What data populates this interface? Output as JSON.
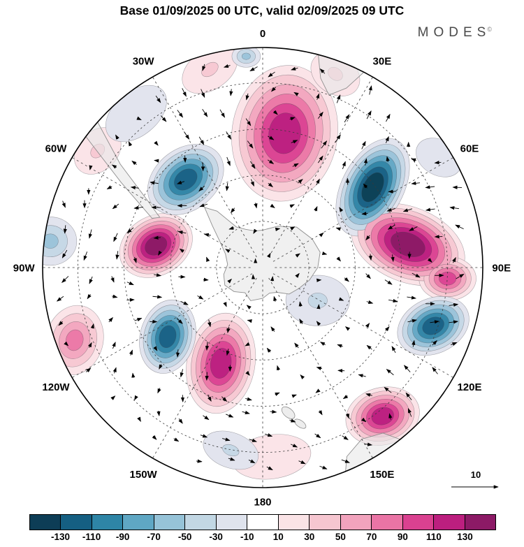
{
  "header": {
    "title": "Base 01/09/2025 00 UTC, valid 02/09/2025 09 UTC",
    "brand": "MODES",
    "brand_mark": "©"
  },
  "chart_data": {
    "type": "filled_contour_polar_map",
    "projection": "south_polar_stereographic",
    "title": "Base 01/09/2025 00 UTC, valid 02/09/2025 09 UTC",
    "meridian_labels": [
      {
        "label": "0",
        "az": 0
      },
      {
        "label": "30E",
        "az": 30
      },
      {
        "label": "60E",
        "az": 60
      },
      {
        "label": "90E",
        "az": 90
      },
      {
        "label": "120E",
        "az": 120
      },
      {
        "label": "150E",
        "az": 150
      },
      {
        "label": "180",
        "az": 180
      },
      {
        "label": "150W",
        "az": 210
      },
      {
        "label": "120W",
        "az": 240
      },
      {
        "label": "90W",
        "az": 270
      },
      {
        "label": "60W",
        "az": 300
      },
      {
        "label": "30W",
        "az": 330
      }
    ],
    "latitude_rings_r": [
      0.21,
      0.42,
      0.63,
      0.84
    ],
    "colorbar": {
      "tick_labels": [
        "-130",
        "-110",
        "-90",
        "-70",
        "-50",
        "-30",
        "-10",
        "10",
        "30",
        "50",
        "70",
        "90",
        "110",
        "130"
      ],
      "colors": [
        "#0d3d56",
        "#155f82",
        "#2e85a6",
        "#5fa7c4",
        "#96c3d8",
        "#c2d7e4",
        "#dfe3ed",
        "#ffffff",
        "#fae3e6",
        "#f6c6d0",
        "#f2a3bd",
        "#ea74a5",
        "#da4190",
        "#bc1f7f",
        "#8c1a66"
      ]
    },
    "negative_ramp": [
      "#e2e4ee",
      "#c6d8e6",
      "#9cc4da",
      "#66a9c6",
      "#3487a8",
      "#1b6387",
      "#0d4258"
    ],
    "positive_ramp": [
      "#fbe4e8",
      "#f7c9d3",
      "#f3a8c0",
      "#ec7aa8",
      "#dc4694",
      "#bd2181",
      "#8e1a67"
    ],
    "anomaly_centers": [
      {
        "sign": 1,
        "u": 0.1,
        "v": -0.61,
        "rx": 0.24,
        "ry": 0.31,
        "rot": 8,
        "levels": 6
      },
      {
        "sign": 1,
        "u": -0.485,
        "v": -0.1,
        "rx": 0.175,
        "ry": 0.135,
        "rot": -30,
        "levels": 7
      },
      {
        "sign": 1,
        "u": 0.66,
        "v": -0.105,
        "rx": 0.27,
        "ry": 0.17,
        "rot": 22,
        "levels": 7
      },
      {
        "sign": 1,
        "u": 0.84,
        "v": 0.05,
        "rx": 0.13,
        "ry": 0.1,
        "rot": 0,
        "levels": 5
      },
      {
        "sign": 1,
        "u": -0.19,
        "v": 0.435,
        "rx": 0.155,
        "ry": 0.23,
        "rot": 10,
        "levels": 6
      },
      {
        "sign": 1,
        "u": 0.545,
        "v": 0.675,
        "rx": 0.17,
        "ry": 0.13,
        "rot": -15,
        "levels": 6
      },
      {
        "sign": 1,
        "u": -0.855,
        "v": 0.33,
        "rx": 0.13,
        "ry": 0.16,
        "rot": 15,
        "levels": 4
      },
      {
        "sign": 1,
        "u": -0.24,
        "v": -0.9,
        "rx": 0.14,
        "ry": 0.09,
        "rot": -35,
        "levels": 2
      },
      {
        "sign": 1,
        "u": 0.33,
        "v": -0.88,
        "rx": 0.12,
        "ry": 0.09,
        "rot": 35,
        "levels": 2
      },
      {
        "sign": 1,
        "u": 0.04,
        "v": 0.86,
        "rx": 0.18,
        "ry": 0.1,
        "rot": -8,
        "levels": 1
      },
      {
        "sign": 1,
        "u": -0.75,
        "v": -0.53,
        "rx": 0.12,
        "ry": 0.09,
        "rot": -45,
        "levels": 2
      },
      {
        "sign": -1,
        "u": -0.35,
        "v": -0.4,
        "rx": 0.19,
        "ry": 0.14,
        "rot": -38,
        "levels": 6
      },
      {
        "sign": -1,
        "u": 0.5,
        "v": -0.365,
        "rx": 0.14,
        "ry": 0.24,
        "rot": 28,
        "levels": 7
      },
      {
        "sign": -1,
        "u": 0.775,
        "v": 0.265,
        "rx": 0.17,
        "ry": 0.125,
        "rot": -25,
        "levels": 6
      },
      {
        "sign": -1,
        "u": -0.432,
        "v": 0.314,
        "rx": 0.125,
        "ry": 0.17,
        "rot": 15,
        "levels": 6
      },
      {
        "sign": -1,
        "u": -0.965,
        "v": -0.12,
        "rx": 0.12,
        "ry": 0.11,
        "rot": 0,
        "levels": 3
      },
      {
        "sign": -1,
        "u": -0.145,
        "v": 0.83,
        "rx": 0.13,
        "ry": 0.08,
        "rot": 20,
        "levels": 2
      },
      {
        "sign": -1,
        "u": -0.075,
        "v": -0.96,
        "rx": 0.065,
        "ry": 0.05,
        "rot": 0,
        "levels": 3
      },
      {
        "sign": -1,
        "u": -0.575,
        "v": -0.7,
        "rx": 0.16,
        "ry": 0.1,
        "rot": -40,
        "levels": 1
      },
      {
        "sign": -1,
        "u": 0.25,
        "v": 0.15,
        "rx": 0.145,
        "ry": 0.115,
        "rot": 0,
        "levels": 2
      },
      {
        "sign": -1,
        "u": 0.8,
        "v": -0.5,
        "rx": 0.11,
        "ry": 0.08,
        "rot": 30,
        "levels": 1
      }
    ],
    "land_shapes": [
      {
        "name": "antarctica",
        "type": "polygon",
        "fill": "#f0f0f0",
        "pts": [
          [
            0,
            0.17
          ],
          [
            20,
            0.2
          ],
          [
            40,
            0.24
          ],
          [
            60,
            0.26
          ],
          [
            75,
            0.27
          ],
          [
            90,
            0.25
          ],
          [
            105,
            0.22
          ],
          [
            120,
            0.19
          ],
          [
            135,
            0.17
          ],
          [
            150,
            0.13
          ],
          [
            165,
            0.12
          ],
          [
            180,
            0.14
          ],
          [
            200,
            0.16
          ],
          [
            215,
            0.14
          ],
          [
            230,
            0.17
          ],
          [
            245,
            0.19
          ],
          [
            260,
            0.18
          ],
          [
            275,
            0.16
          ],
          [
            290,
            0.18
          ],
          [
            300,
            0.22
          ],
          [
            310,
            0.3
          ],
          [
            316,
            0.38
          ],
          [
            321,
            0.33
          ],
          [
            327,
            0.22
          ],
          [
            336,
            0.19
          ],
          [
            348,
            0.17
          ]
        ]
      },
      {
        "name": "south-america",
        "type": "polygon",
        "fill": "rgba(232,232,232,0.6)",
        "pts": [
          [
            312,
            1.03
          ],
          [
            306,
            0.8
          ],
          [
            300,
            0.6
          ],
          [
            296,
            0.52
          ],
          [
            294,
            0.55
          ],
          [
            301,
            0.75
          ],
          [
            307,
            1.03
          ]
        ]
      },
      {
        "name": "africa",
        "type": "polygon",
        "fill": "rgba(232,232,232,0.6)",
        "pts": [
          [
            14,
            1.03
          ],
          [
            17,
            0.9
          ],
          [
            21,
            0.84
          ],
          [
            25,
            0.9
          ],
          [
            28,
            1.03
          ]
        ]
      },
      {
        "name": "australia",
        "type": "polygon",
        "fill": "rgba(232,232,232,0.6)",
        "pts": [
          [
            140,
            1.04
          ],
          [
            144,
            0.93
          ],
          [
            150,
            0.9
          ],
          [
            156,
            0.94
          ],
          [
            159,
            1.04
          ]
        ]
      },
      {
        "name": "new-zealand",
        "type": "ellipse",
        "fill": "rgba(232,232,232,0.8)",
        "az": 170,
        "r": 0.67,
        "rx": 0.035,
        "ry": 0.02,
        "rot": 40
      },
      {
        "name": "new-zealand-south",
        "type": "ellipse",
        "fill": "rgba(232,232,232,0.8)",
        "az": 166.5,
        "r": 0.73,
        "rx": 0.03,
        "ry": 0.015,
        "rot": 35
      }
    ],
    "vector_reference": {
      "label": "10"
    },
    "arrows": {
      "spacing": 0.105,
      "length_min": 6,
      "length_max": 13
    }
  }
}
